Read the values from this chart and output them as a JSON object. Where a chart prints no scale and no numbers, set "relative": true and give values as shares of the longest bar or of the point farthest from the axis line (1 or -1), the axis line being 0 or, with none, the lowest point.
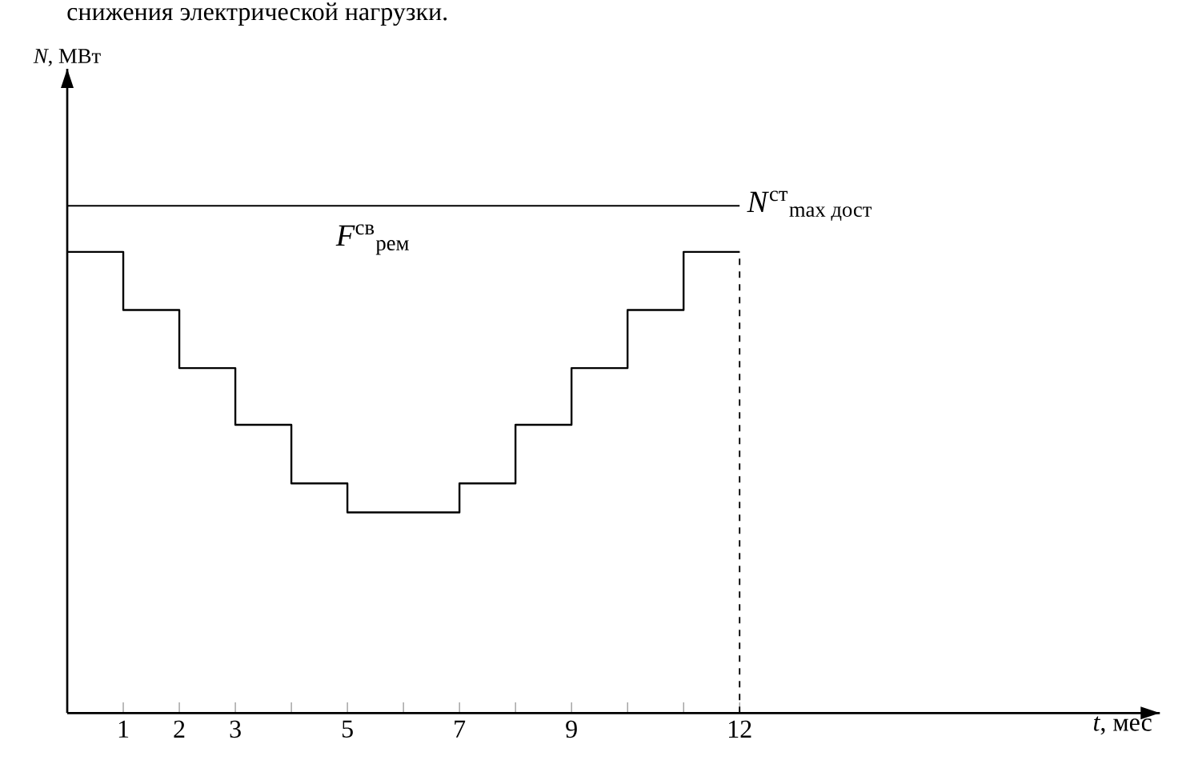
{
  "chart_data": {
    "type": "step",
    "relative": true,
    "annotations": [
      "снижения электрической нагрузки.",
      "*F*$^{св}$$_{рем}$",
      "*N*, МВт"
    ],
    "xlabel": "*t*, мес",
    "x": [
      0,
      1,
      2,
      3,
      4,
      5,
      6,
      7,
      8,
      9,
      10,
      11,
      12
    ],
    "xlim": [
      0,
      19.5
    ],
    "xticks": [
      1,
      2,
      3,
      {
        "value": 4,
        "label": null
      },
      5,
      {
        "value": 6,
        "label": null
      },
      7,
      {
        "value": 8,
        "label": null
      },
      9,
      {
        "value": 10,
        "label": null
      },
      {
        "value": 11,
        "label": null
      },
      12
    ],
    "series": [
      {
        "color": "#000000",
        "values": [
          1,
          0.874,
          0.748,
          0.625,
          0.498,
          0.435,
          0.435,
          0.498,
          0.625,
          0.748,
          0.874,
          1,
          1
        ]
      }
    ],
    "ref_lines": [
      {
        "axis": "y",
        "value": 1.1,
        "label": "*N*$^{ст}$$_{max дост}$",
        "line_style": "solid"
      },
      {
        "axis": "x",
        "value": 12,
        "line_style": "dashed"
      }
    ]
  }
}
